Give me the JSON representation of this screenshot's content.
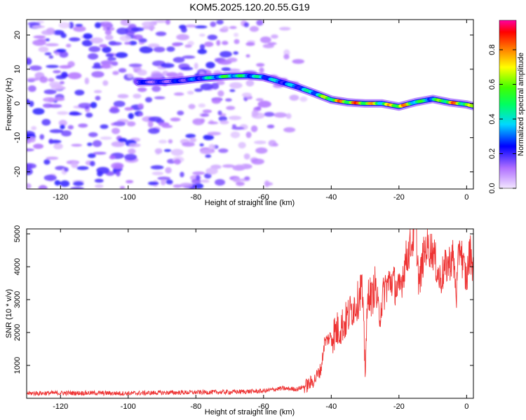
{
  "title": "KOM5.2025.120.20.55.G19",
  "chart_data": [
    {
      "type": "heatmap",
      "xlabel": "Height of straight line (km)",
      "ylabel": "Frequency (Hz)",
      "xlim": [
        -130,
        2
      ],
      "ylim": [
        -25,
        24.5
      ],
      "xticks": [
        -120,
        -100,
        -80,
        -60,
        -40,
        -20,
        0
      ],
      "yticks": [
        -20,
        -10,
        0,
        10,
        20
      ],
      "grid": false,
      "colorbar": {
        "label": "Normalized spectral amplitude",
        "range": [
          0,
          0.97
        ],
        "ticks": [
          0.0,
          0.2,
          0.4,
          0.6,
          0.8
        ],
        "colormap": [
          "#f3e6ff",
          "#b070ff",
          "#0000ff",
          "#00d8ff",
          "#00ff60",
          "#40ff00",
          "#ffff00",
          "#ff7000",
          "#ff0000",
          "#ff00a0"
        ]
      },
      "signal_track": {
        "x": [
          -97,
          -90,
          -85,
          -80,
          -75,
          -70,
          -65,
          -60,
          -55,
          -50,
          -45,
          -40,
          -35,
          -30,
          -25,
          -20,
          -15,
          -10,
          -5,
          0,
          2
        ],
        "frequency": [
          6.2,
          6.3,
          6.6,
          7.2,
          7.6,
          8.0,
          8.1,
          7.7,
          6.3,
          4.8,
          3.0,
          1.1,
          0.3,
          0.0,
          0.0,
          -0.9,
          0.4,
          1.3,
          0.3,
          -0.3,
          -0.8
        ],
        "amplitude": [
          0.22,
          0.2,
          0.24,
          0.3,
          0.45,
          0.55,
          0.45,
          0.4,
          0.35,
          0.35,
          0.45,
          0.75,
          0.85,
          0.85,
          0.6,
          0.9,
          0.55,
          0.45,
          0.85,
          0.7,
          0.6
        ]
      },
      "noise_region": {
        "x_range": [
          -130,
          -60
        ],
        "amplitude_range": [
          0.02,
          0.2
        ]
      }
    },
    {
      "type": "line",
      "xlabel": "Height of straight line (km)",
      "ylabel": "SNR (10 * v/v)",
      "xlim": [
        -130,
        2
      ],
      "ylim": [
        0,
        5150
      ],
      "xticks": [
        -120,
        -100,
        -80,
        -60,
        -40,
        -20,
        0
      ],
      "yticks": [
        1000,
        2000,
        3000,
        4000,
        5000
      ],
      "grid": false,
      "series": [
        {
          "color": "#ee3333",
          "x": [
            -130,
            -120,
            -110,
            -100,
            -90,
            -80,
            -70,
            -60,
            -55,
            -50,
            -47,
            -45,
            -43,
            -42,
            -40,
            -38,
            -36,
            -34,
            -32,
            -31,
            -30,
            -29,
            -28,
            -27,
            -26,
            -24,
            -22,
            -20,
            -18,
            -16,
            -15,
            -14,
            -13,
            -12,
            -10,
            -8,
            -6,
            -4,
            -3,
            -2,
            -1,
            0,
            1,
            2
          ],
          "y": [
            150,
            160,
            160,
            150,
            170,
            180,
            190,
            220,
            300,
            280,
            400,
            550,
            900,
            1700,
            1900,
            2100,
            2300,
            2700,
            3000,
            3500,
            1000,
            3300,
            3000,
            3500,
            2500,
            3400,
            3600,
            3200,
            4200,
            4800,
            5100,
            3400,
            4200,
            4600,
            4500,
            3600,
            4000,
            4300,
            3200,
            4800,
            4000,
            3600,
            4500,
            4000
          ]
        }
      ]
    }
  ]
}
